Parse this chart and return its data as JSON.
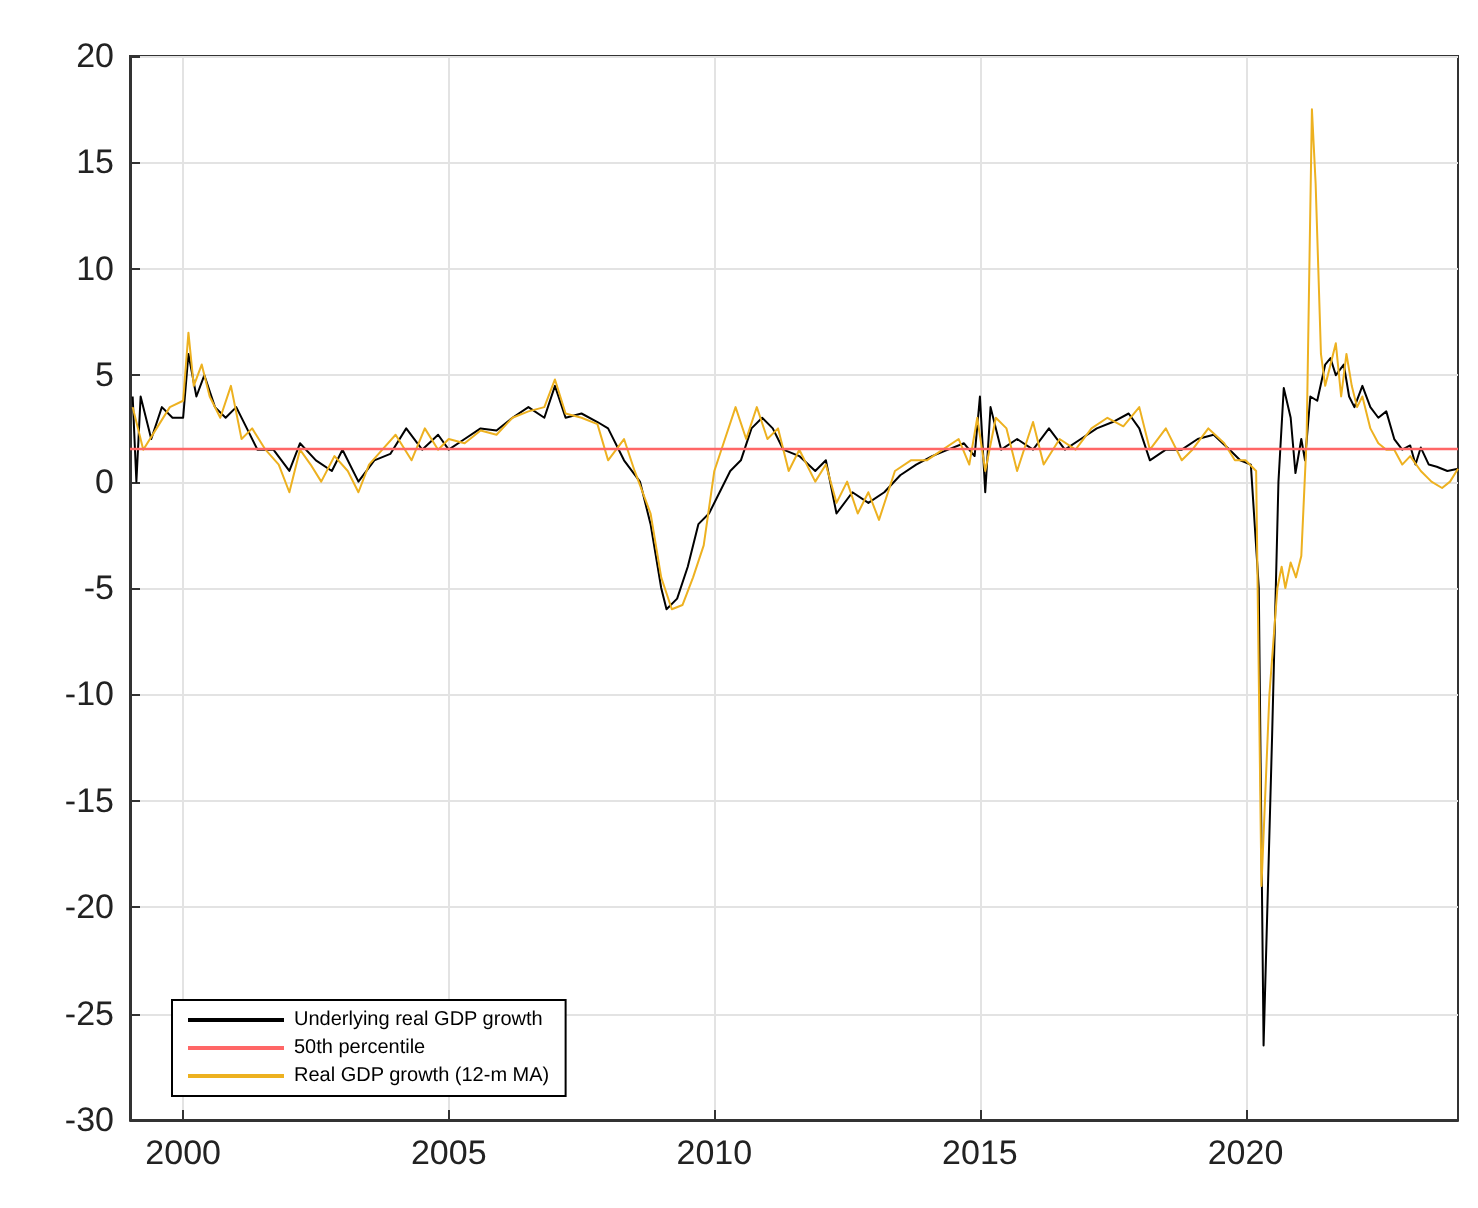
{
  "chart_data": {
    "type": "line",
    "xlim": [
      1999,
      2024
    ],
    "xticks": [
      2000,
      2005,
      2010,
      2015,
      2020
    ],
    "ylim": [
      -30,
      20
    ],
    "yticks": [
      -30,
      -25,
      -20,
      -15,
      -10,
      -5,
      0,
      5,
      10,
      15,
      20
    ],
    "grid": true,
    "legend": "bottom left",
    "marker": "none",
    "line_style": "solid",
    "series": [
      {
        "name": "Underlying real GDP growth",
        "color": "#000000",
        "x": [
          1999.05,
          1999.12,
          1999.2,
          1999.4,
          1999.6,
          1999.8,
          2000.0,
          2000.1,
          2000.25,
          2000.4,
          2000.6,
          2000.8,
          2001.0,
          2001.2,
          2001.4,
          2001.7,
          2002.0,
          2002.2,
          2002.5,
          2002.8,
          2003.0,
          2003.3,
          2003.6,
          2003.9,
          2004.2,
          2004.5,
          2004.8,
          2005.0,
          2005.3,
          2005.6,
          2005.9,
          2006.2,
          2006.5,
          2006.8,
          2007.0,
          2007.2,
          2007.5,
          2007.8,
          2008.0,
          2008.3,
          2008.6,
          2008.8,
          2009.0,
          2009.1,
          2009.3,
          2009.5,
          2009.7,
          2009.9,
          2010.1,
          2010.3,
          2010.5,
          2010.7,
          2010.9,
          2011.1,
          2011.3,
          2011.6,
          2011.9,
          2012.1,
          2012.3,
          2012.6,
          2012.9,
          2013.2,
          2013.5,
          2013.8,
          2014.1,
          2014.4,
          2014.7,
          2014.9,
          2015.0,
          2015.1,
          2015.2,
          2015.4,
          2015.7,
          2016.0,
          2016.3,
          2016.6,
          2016.9,
          2017.2,
          2017.5,
          2017.8,
          2018.0,
          2018.2,
          2018.5,
          2018.8,
          2019.1,
          2019.4,
          2019.7,
          2019.9,
          2020.1,
          2020.25,
          2020.34,
          2020.5,
          2020.62,
          2020.72,
          2020.85,
          2020.94,
          2021.05,
          2021.12,
          2021.22,
          2021.35,
          2021.5,
          2021.6,
          2021.7,
          2021.85,
          2021.95,
          2022.05,
          2022.2,
          2022.35,
          2022.5,
          2022.65,
          2022.8,
          2022.95,
          2023.1,
          2023.2,
          2023.3,
          2023.45,
          2023.6,
          2023.8,
          2024.0
        ],
        "values": [
          4,
          0,
          4,
          2,
          3.5,
          3,
          3,
          6,
          4,
          5,
          3.5,
          3,
          3.5,
          2.5,
          1.5,
          1.5,
          0.5,
          1.8,
          1.0,
          0.5,
          1.5,
          0,
          1,
          1.3,
          2.5,
          1.5,
          2.2,
          1.5,
          2.0,
          2.5,
          2.4,
          3,
          3.5,
          3.0,
          4.5,
          3,
          3.2,
          2.8,
          2.5,
          1,
          0,
          -2,
          -5,
          -6,
          -5.5,
          -4,
          -2,
          -1.5,
          -0.5,
          0.5,
          1,
          2.5,
          3,
          2.5,
          1.5,
          1.2,
          0.5,
          1,
          -1.5,
          -0.5,
          -1,
          -0.5,
          0.3,
          0.8,
          1.2,
          1.5,
          1.8,
          1.2,
          4,
          -0.5,
          3.5,
          1.5,
          2,
          1.5,
          2.5,
          1.5,
          2,
          2.5,
          2.8,
          3.2,
          2.5,
          1.0,
          1.5,
          1.5,
          2.0,
          2.2,
          1.5,
          1.0,
          0.8,
          -5,
          -26.5,
          -12,
          0,
          4.4,
          3,
          0.4,
          2.0,
          1.0,
          4.0,
          3.8,
          5.5,
          5.8,
          5.0,
          5.5,
          4.0,
          3.5,
          4.5,
          3.5,
          3.0,
          3.3,
          2.0,
          1.5,
          1.7,
          0.8,
          1.6,
          0.8,
          0.7,
          0.5,
          0.6
        ]
      },
      {
        "name": "Real GDP growth (12-m MA)",
        "color": "#edb120",
        "x": [
          1999.05,
          1999.25,
          1999.5,
          1999.75,
          2000.0,
          2000.1,
          2000.2,
          2000.35,
          2000.5,
          2000.7,
          2000.9,
          2001.1,
          2001.3,
          2001.55,
          2001.8,
          2002.0,
          2002.2,
          2002.4,
          2002.6,
          2002.85,
          2003.1,
          2003.3,
          2003.5,
          2003.75,
          2004.0,
          2004.3,
          2004.55,
          2004.8,
          2005.0,
          2005.3,
          2005.6,
          2005.9,
          2006.2,
          2006.5,
          2006.8,
          2007.0,
          2007.2,
          2007.5,
          2007.8,
          2008.0,
          2008.3,
          2008.5,
          2008.8,
          2009.0,
          2009.2,
          2009.4,
          2009.6,
          2009.8,
          2010.0,
          2010.2,
          2010.4,
          2010.6,
          2010.8,
          2011.0,
          2011.2,
          2011.4,
          2011.6,
          2011.9,
          2012.1,
          2012.3,
          2012.5,
          2012.7,
          2012.9,
          2013.1,
          2013.4,
          2013.7,
          2014.0,
          2014.3,
          2014.6,
          2014.8,
          2014.95,
          2015.1,
          2015.3,
          2015.5,
          2015.7,
          2016.0,
          2016.2,
          2016.5,
          2016.8,
          2017.1,
          2017.4,
          2017.7,
          2018.0,
          2018.2,
          2018.5,
          2018.8,
          2019.0,
          2019.3,
          2019.6,
          2019.8,
          2020.0,
          2020.2,
          2020.3,
          2020.45,
          2020.6,
          2020.68,
          2020.75,
          2020.85,
          2020.95,
          2021.05,
          2021.15,
          2021.25,
          2021.32,
          2021.42,
          2021.5,
          2021.6,
          2021.7,
          2021.8,
          2021.9,
          2022.0,
          2022.1,
          2022.2,
          2022.35,
          2022.5,
          2022.65,
          2022.8,
          2022.95,
          2023.1,
          2023.3,
          2023.5,
          2023.7,
          2023.85,
          2024.0
        ],
        "values": [
          3.5,
          1.5,
          2.5,
          3.5,
          3.8,
          7.0,
          4.5,
          5.5,
          4.0,
          3.0,
          4.5,
          2.0,
          2.5,
          1.5,
          0.8,
          -0.5,
          1.5,
          0.8,
          0.0,
          1.2,
          0.5,
          -0.5,
          0.8,
          1.5,
          2.2,
          1.0,
          2.5,
          1.5,
          2.0,
          1.8,
          2.4,
          2.2,
          3.0,
          3.3,
          3.5,
          4.8,
          3.2,
          3.0,
          2.7,
          1.0,
          2.0,
          0.5,
          -1.5,
          -4.5,
          -6.0,
          -5.8,
          -4.5,
          -3.0,
          0.5,
          2.0,
          3.5,
          2.0,
          3.5,
          2.0,
          2.5,
          0.5,
          1.5,
          0.0,
          0.8,
          -1.0,
          0.0,
          -1.5,
          -0.5,
          -1.8,
          0.5,
          1.0,
          1.0,
          1.5,
          2.0,
          0.8,
          3.0,
          0.5,
          3.0,
          2.5,
          0.5,
          2.8,
          0.8,
          2.0,
          1.5,
          2.5,
          3.0,
          2.6,
          3.5,
          1.5,
          2.5,
          1.0,
          1.5,
          2.5,
          1.8,
          1.0,
          1.0,
          0.5,
          -19,
          -10,
          -5,
          -4.0,
          -5,
          -3.8,
          -4.5,
          -3.5,
          2,
          17.5,
          14,
          6,
          4.5,
          5.5,
          6.5,
          4.0,
          6.0,
          4.5,
          3.5,
          4.0,
          2.5,
          1.8,
          1.5,
          1.5,
          0.8,
          1.2,
          0.5,
          0.0,
          -0.3,
          0,
          0.6
        ]
      }
    ],
    "ref_lines": [
      {
        "axis": "y",
        "value": 1.6,
        "label": "50th percentile",
        "color": "#ff6666",
        "line_style": "solid"
      }
    ]
  }
}
